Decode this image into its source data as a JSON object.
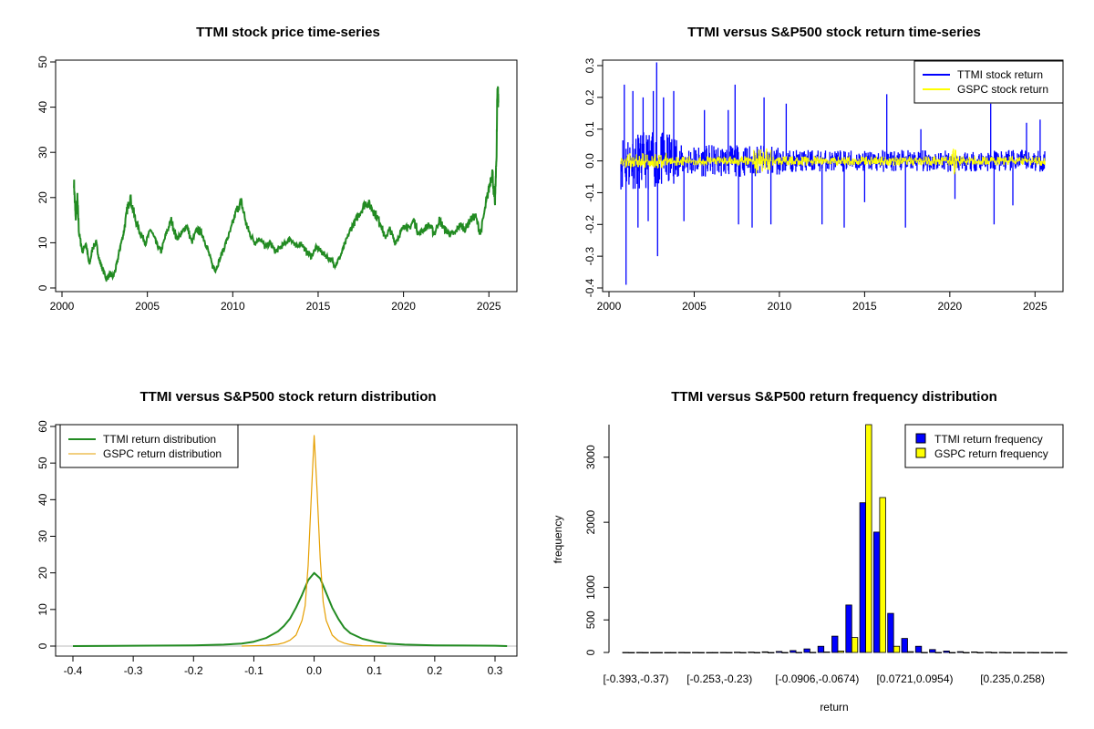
{
  "chart_data": [
    {
      "id": "p1",
      "type": "line",
      "title": "TTMI stock price time-series",
      "xlabel": "",
      "ylabel": "",
      "xlim": [
        2000,
        2026
      ],
      "ylim": [
        0,
        50
      ],
      "xticks": [
        2000,
        2005,
        2010,
        2015,
        2020,
        2025
      ],
      "yticks": [
        0,
        10,
        20,
        30,
        40,
        50
      ],
      "series": [
        {
          "color": "#228B22",
          "x": [
            2000.7,
            2000.8,
            2000.9,
            2001.0,
            2001.2,
            2001.4,
            2001.6,
            2001.8,
            2002.0,
            2002.2,
            2002.4,
            2002.6,
            2002.8,
            2003.0,
            2003.2,
            2003.4,
            2003.6,
            2003.8,
            2004.0,
            2004.3,
            2004.6,
            2004.9,
            2005.2,
            2005.5,
            2005.8,
            2006.1,
            2006.4,
            2006.7,
            2007.0,
            2007.3,
            2007.6,
            2007.9,
            2008.2,
            2008.5,
            2008.8,
            2009.0,
            2009.3,
            2009.6,
            2009.9,
            2010.2,
            2010.5,
            2010.8,
            2011.0,
            2011.3,
            2011.6,
            2011.9,
            2012.2,
            2012.5,
            2012.8,
            2013.1,
            2013.4,
            2013.7,
            2014.0,
            2014.3,
            2014.6,
            2014.9,
            2015.2,
            2015.5,
            2015.8,
            2016.0,
            2016.3,
            2016.6,
            2016.9,
            2017.2,
            2017.5,
            2017.8,
            2018.1,
            2018.4,
            2018.7,
            2018.9,
            2019.2,
            2019.5,
            2019.8,
            2020.1,
            2020.3,
            2020.6,
            2020.9,
            2021.2,
            2021.5,
            2021.8,
            2022.1,
            2022.4,
            2022.7,
            2023.0,
            2023.3,
            2023.6,
            2023.9,
            2024.2,
            2024.5,
            2024.8,
            2025.0,
            2025.2,
            2025.35,
            2025.45,
            2025.5,
            2025.55
          ],
          "y": [
            23.5,
            15,
            20,
            12,
            8,
            10,
            5,
            9,
            10,
            6,
            4,
            2,
            3,
            2.5,
            5,
            9,
            12,
            17,
            20,
            15,
            12,
            10,
            13,
            10,
            8,
            12,
            15,
            11,
            12,
            14,
            10,
            13,
            12,
            9,
            5,
            4,
            7,
            10,
            13,
            17,
            19,
            14,
            12,
            10,
            11,
            9,
            10,
            8,
            9,
            10,
            11,
            9,
            10,
            8,
            7,
            9,
            8,
            7,
            6,
            5,
            7,
            10,
            13,
            15,
            17,
            19,
            18,
            16,
            14,
            11,
            13,
            10,
            12,
            14,
            13,
            15,
            12,
            13,
            14,
            12,
            15,
            13,
            12,
            12,
            14,
            13,
            15,
            16,
            12,
            18,
            22,
            26,
            18,
            30,
            45,
            41
          ]
        }
      ]
    },
    {
      "id": "p2",
      "type": "line",
      "title": "TTMI versus S&P500 stock return time-series",
      "xlabel": "",
      "ylabel": "",
      "xlim": [
        2000,
        2026
      ],
      "ylim": [
        -0.4,
        0.3
      ],
      "xticks": [
        2000,
        2005,
        2010,
        2015,
        2020,
        2025
      ],
      "yticks": [
        -0.4,
        -0.3,
        -0.2,
        -0.1,
        0.0,
        0.1,
        0.2,
        0.3
      ],
      "ytick_labels": [
        "-0.4",
        "-0.3",
        "-0.2",
        "-0.1",
        "0.0",
        "0.1",
        "0.2",
        "0.3"
      ],
      "legend": "top-right",
      "series": [
        {
          "name": "TTMI stock return",
          "color": "#0000FF",
          "x_start": 2000.7,
          "x_end": 2025.6
        },
        {
          "name": "GSPC stock return",
          "color": "#FFFF00",
          "x_start": 2000.7,
          "x_end": 2025.6
        }
      ],
      "ttmi_spikes": [
        {
          "x": 2000.9,
          "y": 0.24
        },
        {
          "x": 2001.0,
          "y": -0.39
        },
        {
          "x": 2001.4,
          "y": 0.22
        },
        {
          "x": 2001.7,
          "y": -0.21
        },
        {
          "x": 2002.0,
          "y": 0.2
        },
        {
          "x": 2002.3,
          "y": -0.19
        },
        {
          "x": 2002.6,
          "y": 0.22
        },
        {
          "x": 2002.8,
          "y": 0.31
        },
        {
          "x": 2002.85,
          "y": -0.3
        },
        {
          "x": 2003.2,
          "y": 0.2
        },
        {
          "x": 2003.8,
          "y": 0.22
        },
        {
          "x": 2004.4,
          "y": -0.19
        },
        {
          "x": 2005.6,
          "y": 0.16
        },
        {
          "x": 2007.0,
          "y": 0.16
        },
        {
          "x": 2007.4,
          "y": 0.24
        },
        {
          "x": 2007.6,
          "y": -0.2
        },
        {
          "x": 2008.4,
          "y": -0.21
        },
        {
          "x": 2009.1,
          "y": 0.2
        },
        {
          "x": 2009.5,
          "y": -0.2
        },
        {
          "x": 2010.4,
          "y": 0.18
        },
        {
          "x": 2012.5,
          "y": -0.2
        },
        {
          "x": 2013.8,
          "y": -0.21
        },
        {
          "x": 2015.0,
          "y": -0.13
        },
        {
          "x": 2016.3,
          "y": 0.21
        },
        {
          "x": 2017.4,
          "y": -0.21
        },
        {
          "x": 2018.3,
          "y": 0.1
        },
        {
          "x": 2020.3,
          "y": -0.12
        },
        {
          "x": 2022.4,
          "y": 0.18
        },
        {
          "x": 2022.6,
          "y": -0.2
        },
        {
          "x": 2023.7,
          "y": -0.14
        },
        {
          "x": 2024.5,
          "y": 0.12
        },
        {
          "x": 2025.3,
          "y": 0.13
        }
      ]
    },
    {
      "id": "p3",
      "type": "line",
      "title": "TTMI versus S&P500 stock return distribution",
      "xlabel": "",
      "ylabel": "",
      "xlim": [
        -0.41,
        0.33
      ],
      "ylim": [
        -1,
        60
      ],
      "xticks": [
        -0.4,
        -0.3,
        -0.2,
        -0.1,
        0.0,
        0.1,
        0.2,
        0.3
      ],
      "xtick_labels": [
        "-0.4",
        "-0.3",
        "-0.2",
        "-0.1",
        "0.0",
        "0.1",
        "0.2",
        "0.3"
      ],
      "yticks": [
        0,
        10,
        20,
        30,
        40,
        50,
        60
      ],
      "legend": "top-left",
      "series": [
        {
          "name": "TTMI return distribution",
          "color": "#228B22",
          "x": [
            -0.4,
            -0.3,
            -0.2,
            -0.15,
            -0.12,
            -0.1,
            -0.08,
            -0.06,
            -0.05,
            -0.04,
            -0.03,
            -0.02,
            -0.01,
            0.0,
            0.01,
            0.02,
            0.03,
            0.04,
            0.05,
            0.06,
            0.08,
            0.1,
            0.12,
            0.15,
            0.2,
            0.3,
            0.32
          ],
          "y": [
            0,
            0.1,
            0.2,
            0.4,
            0.7,
            1.2,
            2.2,
            4,
            5.5,
            7.5,
            10.5,
            14,
            18,
            20,
            18.5,
            14.5,
            10.5,
            7.5,
            5,
            3.5,
            2,
            1.2,
            0.7,
            0.4,
            0.2,
            0.1,
            0
          ]
        },
        {
          "name": "GSPC return distribution",
          "color": "#E69F00",
          "x": [
            -0.12,
            -0.08,
            -0.06,
            -0.05,
            -0.04,
            -0.03,
            -0.02,
            -0.015,
            -0.01,
            -0.005,
            0.0,
            0.005,
            0.01,
            0.015,
            0.02,
            0.03,
            0.04,
            0.05,
            0.06,
            0.08,
            0.12
          ],
          "y": [
            0,
            0.2,
            0.5,
            0.9,
            1.6,
            3,
            7,
            11,
            22,
            40,
            57.5,
            42,
            24,
            12,
            7,
            3,
            1.5,
            0.8,
            0.4,
            0.1,
            0
          ]
        }
      ]
    },
    {
      "id": "p4",
      "type": "bar",
      "title": "TTMI versus S&P500 return frequency distribution",
      "xlabel": "return",
      "ylabel": "frequency",
      "ylim": [
        0,
        3500
      ],
      "yticks": [
        0,
        500,
        1000,
        2000,
        3000
      ],
      "legend": "top-right",
      "category_labels": [
        {
          "index": 0,
          "label": "[-0.393,-0.37)"
        },
        {
          "index": 6,
          "label": "[-0.253,-0.23)"
        },
        {
          "index": 13,
          "label": "[-0.0906,-0.0674)"
        },
        {
          "index": 20,
          "label": "[0.0721,0.0954)"
        },
        {
          "index": 27,
          "label": "[0.235,0.258)"
        }
      ],
      "series": [
        {
          "name": "TTMI return frequency",
          "color": "#0000FF",
          "values": [
            1,
            1,
            0,
            0,
            1,
            1,
            0,
            2,
            4,
            6,
            10,
            16,
            30,
            55,
            95,
            250,
            730,
            2300,
            1850,
            600,
            215,
            95,
            45,
            22,
            12,
            8,
            5,
            3,
            2,
            1,
            1,
            1
          ]
        },
        {
          "name": "GSPC return frequency",
          "color": "#FFFF00",
          "values": [
            0,
            0,
            0,
            0,
            0,
            0,
            0,
            0,
            0,
            0,
            0,
            0,
            1,
            3,
            8,
            22,
            230,
            3500,
            2380,
            95,
            12,
            2,
            1,
            0,
            0,
            0,
            0,
            0,
            0,
            0,
            0,
            0
          ]
        }
      ]
    }
  ]
}
